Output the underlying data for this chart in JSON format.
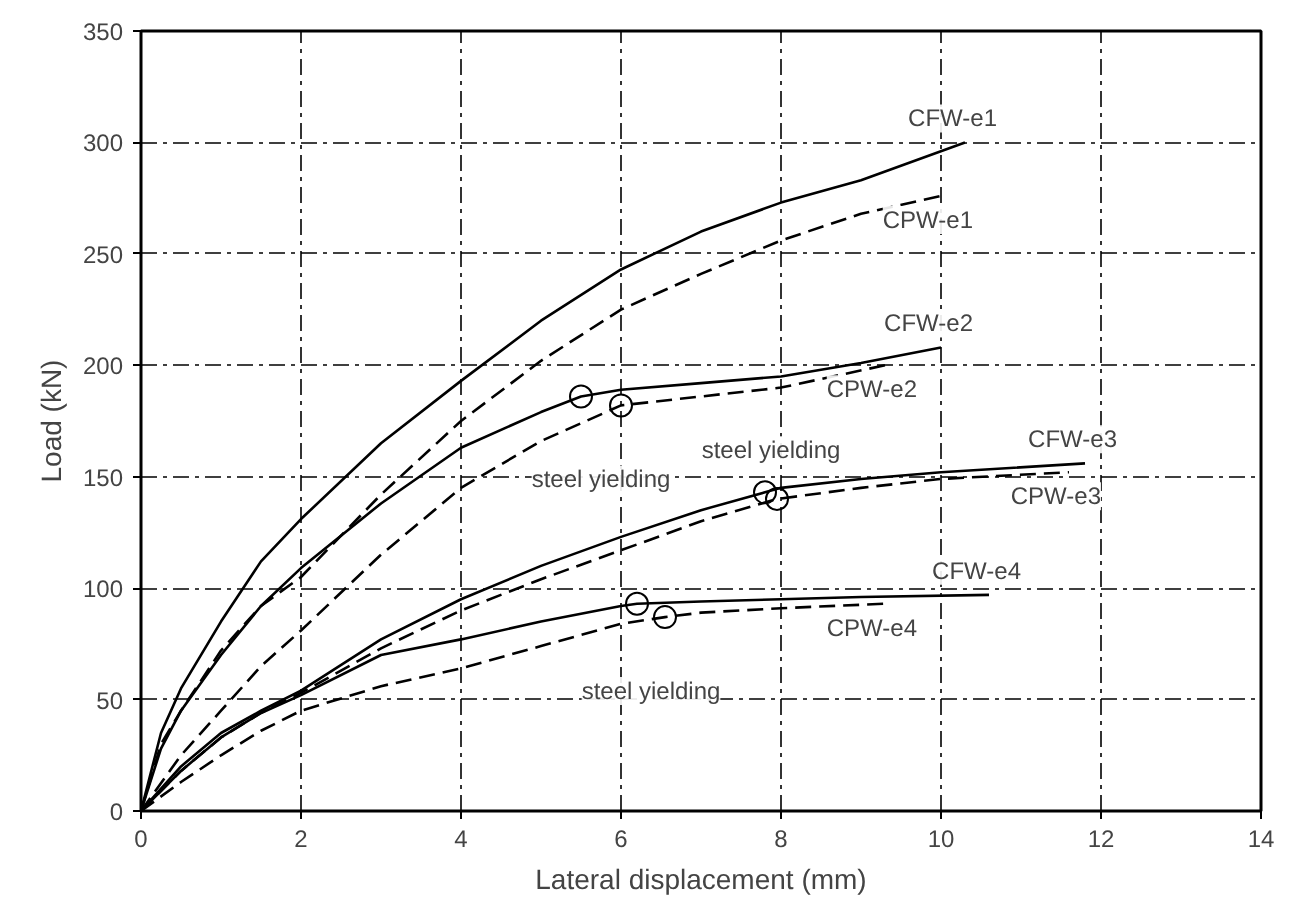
{
  "chart_data": {
    "type": "line",
    "xlabel": "Lateral displacement (mm)",
    "ylabel": "Load (kN)",
    "xlim": [
      0,
      14
    ],
    "ylim": [
      0,
      350
    ],
    "xticks": [
      0,
      2,
      4,
      6,
      8,
      10,
      12,
      14
    ],
    "yticks": [
      0,
      50,
      100,
      150,
      200,
      250,
      300,
      350
    ],
    "grid": true,
    "marker": "none",
    "series": [
      {
        "name": "CFW-e1",
        "color": "#000000",
        "line_style": "solid",
        "x": [
          0,
          0.25,
          0.5,
          1,
          1.5,
          2,
          3,
          4,
          5,
          6,
          7,
          8,
          9,
          10.3
        ],
        "values": [
          0,
          35,
          55,
          85,
          112,
          131,
          165,
          193,
          220,
          243,
          260,
          273,
          283,
          300
        ]
      },
      {
        "name": "CPW-e1",
        "color": "#000000",
        "line_style": "dashed",
        "x": [
          0,
          0.25,
          0.5,
          1,
          1.5,
          2,
          3,
          4,
          5,
          6,
          7,
          8,
          9,
          10
        ],
        "values": [
          0,
          30,
          45,
          72,
          92,
          105,
          142,
          175,
          202,
          225,
          241,
          256,
          268,
          276
        ]
      },
      {
        "name": "CFW-e2",
        "color": "#000000",
        "line_style": "solid",
        "x": [
          0,
          0.25,
          0.5,
          1,
          1.5,
          2,
          3,
          4,
          5,
          5.5,
          6,
          7,
          8,
          9,
          10
        ],
        "values": [
          0,
          28,
          45,
          70,
          92,
          109,
          138,
          163,
          179,
          186,
          189,
          192,
          195,
          201,
          208
        ]
      },
      {
        "name": "CPW-e2",
        "color": "#000000",
        "line_style": "dashed",
        "x": [
          0,
          0.5,
          1,
          1.5,
          2,
          3,
          4,
          5,
          6,
          7,
          8,
          9.3
        ],
        "values": [
          0,
          25,
          45,
          65,
          81,
          115,
          145,
          166,
          182,
          186,
          190,
          200
        ]
      },
      {
        "name": "CFW-e3",
        "color": "#000000",
        "line_style": "solid",
        "x": [
          0,
          0.5,
          1,
          1.5,
          2,
          3,
          4,
          5,
          6,
          7,
          7.8,
          8,
          9,
          10,
          11.8
        ],
        "values": [
          0,
          20,
          35,
          45,
          54,
          77,
          95,
          110,
          123,
          135,
          143,
          145,
          149,
          152,
          156
        ]
      },
      {
        "name": "CPW-e3",
        "color": "#000000",
        "line_style": "dashed",
        "x": [
          0,
          0.5,
          1,
          1.5,
          2,
          3,
          4,
          5,
          6,
          7,
          7.95,
          9,
          10,
          11.6
        ],
        "values": [
          0,
          18,
          33,
          44,
          53,
          73,
          90,
          104,
          117,
          130,
          140,
          145,
          149,
          152
        ]
      },
      {
        "name": "CFW-e4",
        "color": "#000000",
        "line_style": "solid",
        "x": [
          0,
          0.5,
          1,
          1.5,
          2,
          3,
          4,
          5,
          6,
          6.2,
          7,
          8,
          9,
          10.6
        ],
        "values": [
          0,
          18,
          33,
          44,
          52,
          70,
          77,
          85,
          92,
          93,
          94,
          95,
          96,
          97
        ]
      },
      {
        "name": "CPW-e4",
        "color": "#000000",
        "line_style": "dashed",
        "x": [
          0,
          0.5,
          1,
          1.5,
          2,
          3,
          4,
          5,
          6,
          6.55,
          7,
          8,
          9.3
        ],
        "values": [
          0,
          13,
          25,
          36,
          45,
          56,
          64,
          74,
          84,
          87,
          89,
          91,
          93
        ]
      },
      {
        "type": "scatter",
        "marker": "circle",
        "color": "#000000",
        "x": [
          5.5,
          6.0,
          7.8,
          7.95,
          6.2,
          6.55
        ],
        "values": [
          186,
          182,
          143,
          140,
          93,
          87
        ]
      }
    ],
    "annotations": [
      "steel yielding",
      "steel yielding",
      "steel yielding"
    ]
  }
}
